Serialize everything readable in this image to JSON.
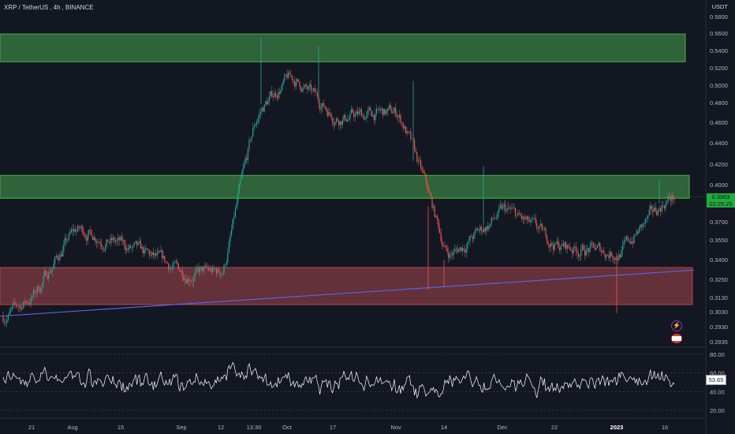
{
  "header": {
    "symbol": "XRP / TetherUS",
    "interval": "4h",
    "exchange": "BINANCE"
  },
  "currency": "USDT",
  "price_scale": [
    "0.5800",
    "0.5600",
    "0.5400",
    "0.5200",
    "0.5000",
    "0.4800",
    "0.4600",
    "0.4400",
    "0.4200",
    "0.4000",
    "0.3700",
    "0.3550",
    "0.3400",
    "0.3250",
    "0.3130",
    "0.3030",
    "0.2930",
    "0.2835"
  ],
  "last_price": {
    "value": "0.3903",
    "countdown": "02:25:25"
  },
  "rsi": {
    "levels": [
      "80.00",
      "60.00",
      "40.00",
      "20.00"
    ],
    "current": "53.65"
  },
  "time_axis": [
    "21",
    "Aug",
    "15",
    "Sep",
    "12",
    "13:30",
    "Oct",
    "17",
    "Nov",
    "14",
    "Dec",
    "22",
    "2023",
    "16"
  ],
  "colors": {
    "background": "#131722",
    "up": "#26a69a",
    "down": "#ef5350",
    "support_zone": "#a8474f",
    "resistance_zone": "#4caf50",
    "trendline": "#5a62e0",
    "rsi_line": "#ffffff",
    "last_price": "#22ab3f"
  },
  "chart_data": {
    "type": "candlestick",
    "symbol": "XRP / TetherUS",
    "timeframe": "4h",
    "exchange": "BINANCE",
    "price_path": [
      [
        "21",
        0.315
      ],
      [
        "Aug",
        0.365
      ],
      [
        "15",
        0.35
      ],
      [
        "Sep",
        0.33
      ],
      [
        "12",
        0.33
      ],
      [
        "13:30",
        0.47
      ],
      [
        "Oct",
        0.51
      ],
      [
        "17",
        0.465
      ],
      [
        "Nov",
        0.47
      ],
      [
        "14",
        0.34
      ],
      [
        "Dec",
        0.38
      ],
      [
        "22",
        0.35
      ],
      [
        "2023",
        0.345
      ],
      [
        "16",
        0.39
      ]
    ],
    "zones": [
      {
        "type": "resistance",
        "from": 0.527,
        "to": 0.559
      },
      {
        "type": "resistance",
        "from": 0.389,
        "to": 0.409
      },
      {
        "type": "support",
        "from": 0.308,
        "to": 0.334
      }
    ],
    "trendline": {
      "from": [
        "21",
        0.3
      ],
      "to": [
        "16",
        0.332
      ]
    },
    "last_price": 0.3903,
    "rsi_current": 53.65
  }
}
